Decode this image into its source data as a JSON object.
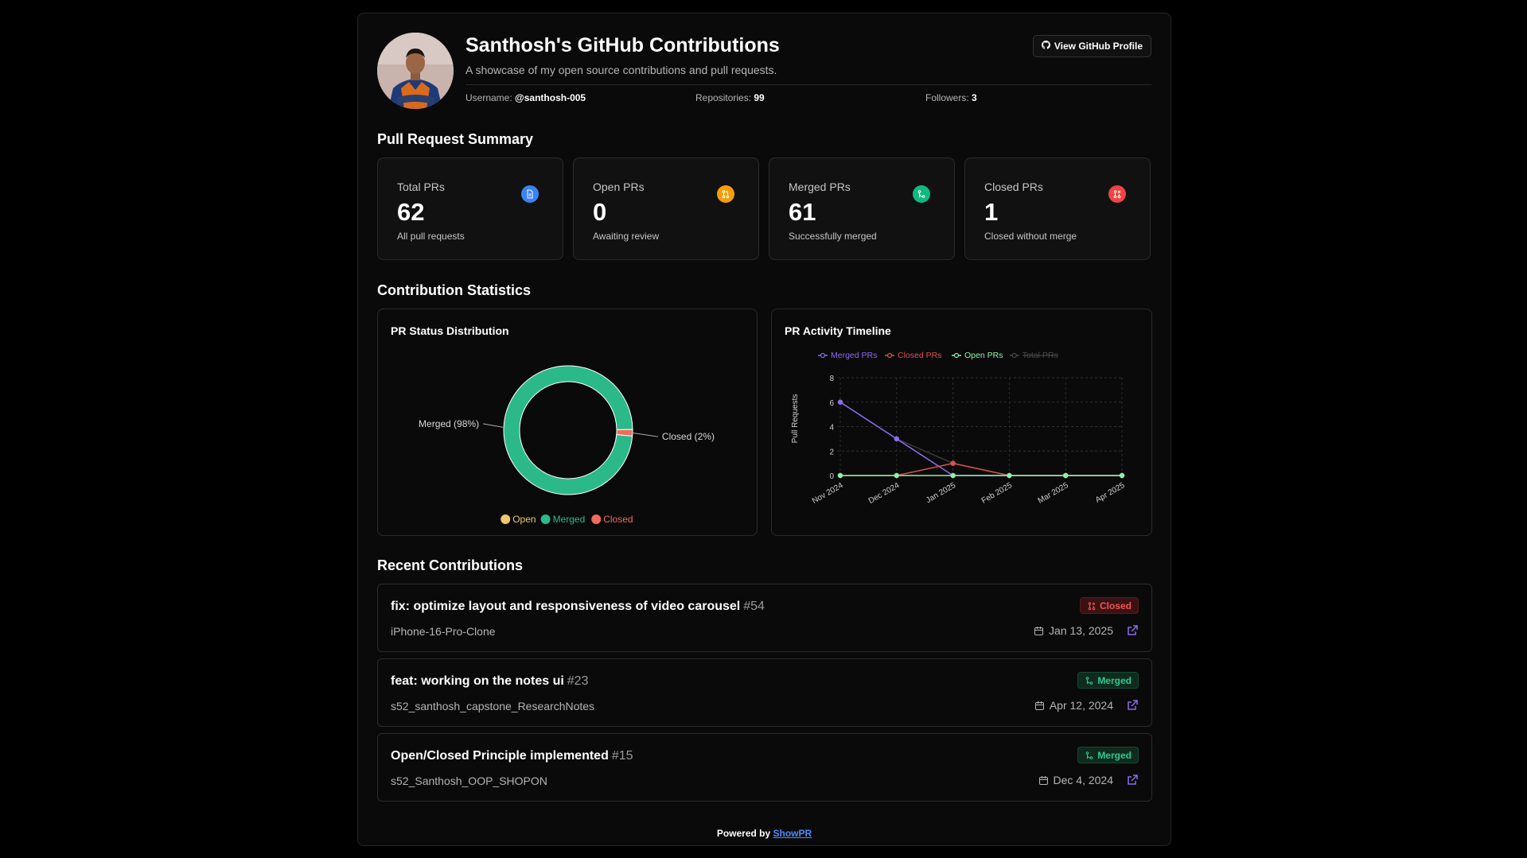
{
  "header": {
    "title": "Santhosh's GitHub Contributions",
    "subtitle": "A showcase of my open source contributions and pull requests.",
    "profile_button": "View GitHub Profile",
    "username_label": "Username:",
    "username": "@santhosh-005",
    "repos_label": "Repositories:",
    "repos": "99",
    "followers_label": "Followers:",
    "followers": "3"
  },
  "summary": {
    "title": "Pull Request Summary",
    "cards": [
      {
        "label": "Total PRs",
        "value": "62",
        "desc": "All pull requests",
        "color": "#3b82f6",
        "icon": "document-icon"
      },
      {
        "label": "Open PRs",
        "value": "0",
        "desc": "Awaiting review",
        "color": "#f59e0b",
        "icon": "pull-request-icon"
      },
      {
        "label": "Merged PRs",
        "value": "61",
        "desc": "Successfully merged",
        "color": "#10b981",
        "icon": "merge-icon"
      },
      {
        "label": "Closed PRs",
        "value": "1",
        "desc": "Closed without merge",
        "color": "#ef4444",
        "icon": "closed-pr-icon"
      }
    ]
  },
  "stats": {
    "title": "Contribution Statistics",
    "pie_title": "PR Status Distribution",
    "timeline_title": "PR Activity Timeline"
  },
  "chart_data": [
    {
      "type": "pie",
      "title": "PR Status Distribution",
      "donut": true,
      "categories": [
        "Open",
        "Merged",
        "Closed"
      ],
      "values": [
        0,
        61,
        1
      ],
      "colors": [
        "#f0c76a",
        "#2bb98a",
        "#ef6b5b"
      ],
      "slice_labels": {
        "Merged": "Merged (98%)",
        "Closed": "Closed (2%)"
      },
      "legend": "bottom"
    },
    {
      "type": "line",
      "title": "PR Activity Timeline",
      "categories": [
        "Nov 2024",
        "Dec 2024",
        "Jan 2025",
        "Feb 2025",
        "Mar 2025",
        "Apr 2025"
      ],
      "ylabel": "Pull Requests",
      "ylim": [
        0,
        8
      ],
      "yticks": [
        0,
        2,
        4,
        6,
        8
      ],
      "grid": true,
      "legend": "top",
      "series": [
        {
          "name": "Merged PRs",
          "values": [
            6,
            3,
            0,
            0,
            0,
            0
          ],
          "color": "#8b6cf0",
          "hidden": false
        },
        {
          "name": "Closed PRs",
          "values": [
            0,
            0,
            1,
            0,
            0,
            0
          ],
          "color": "#d9534f",
          "hidden": false
        },
        {
          "name": "Open PRs",
          "values": [
            0,
            0,
            0,
            0,
            0,
            0
          ],
          "color": "#8ff0a8",
          "hidden": false
        },
        {
          "name": "Total PRs",
          "values": [
            6,
            3,
            1,
            0,
            0,
            0
          ],
          "color": "#3a3a3a",
          "hidden": true
        }
      ]
    }
  ],
  "recent": {
    "title": "Recent Contributions",
    "items": [
      {
        "title": "fix: optimize layout and responsiveness of video carousel",
        "number": "#54",
        "repo": "iPhone-16-Pro-Clone",
        "status": "Closed",
        "date": "Jan 13, 2025"
      },
      {
        "title": "feat: working on the notes ui",
        "number": "#23",
        "repo": "s52_santhosh_capstone_ResearchNotes",
        "status": "Merged",
        "date": "Apr 12, 2024"
      },
      {
        "title": "Open/Closed Principle implemented",
        "number": "#15",
        "repo": "s52_Santhosh_OOP_SHOPON",
        "status": "Merged",
        "date": "Dec 4, 2024"
      }
    ]
  },
  "footer": {
    "prefix": "Powered by",
    "link": "ShowPR"
  }
}
